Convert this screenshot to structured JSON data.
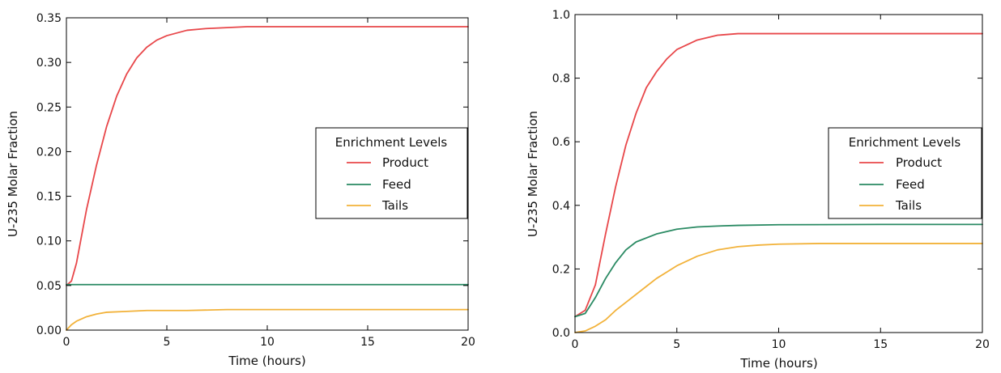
{
  "chart_data": [
    {
      "type": "line",
      "xlabel": "Time (hours)",
      "ylabel": "U-235 Molar Fraction",
      "xlim": [
        0,
        20
      ],
      "ylim": [
        0,
        0.35
      ],
      "x_ticks": [
        0,
        5,
        10,
        15,
        20
      ],
      "x_tick_labels": [
        "0",
        "5",
        "10",
        "15",
        "20"
      ],
      "y_ticks": [
        0,
        0.05,
        0.1,
        0.15,
        0.2,
        0.25,
        0.3,
        0.35
      ],
      "y_tick_labels": [
        "0.00",
        "0.05",
        "0.10",
        "0.15",
        "0.20",
        "0.25",
        "0.30",
        "0.35"
      ],
      "grid": false,
      "legend": {
        "title": "Enrichment Levels",
        "placement": "center-right",
        "entries": [
          "Product",
          "Feed",
          "Tails"
        ]
      },
      "series": [
        {
          "name": "Product",
          "color": "#e8474a",
          "x": [
            0,
            0.25,
            0.5,
            0.75,
            1,
            1.5,
            2,
            2.5,
            3,
            3.5,
            4,
            4.5,
            5,
            6,
            7,
            8,
            9,
            10,
            12,
            15,
            20
          ],
          "values": [
            0.05,
            0.055,
            0.075,
            0.105,
            0.135,
            0.185,
            0.228,
            0.262,
            0.287,
            0.305,
            0.317,
            0.325,
            0.33,
            0.336,
            0.338,
            0.339,
            0.34,
            0.34,
            0.34,
            0.34,
            0.34
          ]
        },
        {
          "name": "Feed",
          "color": "#2a8a63",
          "x": [
            0,
            5,
            10,
            15,
            20
          ],
          "values": [
            0.051,
            0.051,
            0.051,
            0.051,
            0.051
          ]
        },
        {
          "name": "Tails",
          "color": "#f2b23a",
          "x": [
            0,
            0.25,
            0.5,
            1,
            1.5,
            2,
            3,
            4,
            5,
            6,
            8,
            10,
            15,
            20
          ],
          "values": [
            0.0,
            0.006,
            0.01,
            0.015,
            0.018,
            0.02,
            0.021,
            0.022,
            0.022,
            0.022,
            0.023,
            0.023,
            0.023,
            0.023
          ]
        }
      ]
    },
    {
      "type": "line",
      "xlabel": "Time (hours)",
      "ylabel": "U-235 Molar Fraction",
      "xlim": [
        0,
        20
      ],
      "ylim": [
        0,
        1.0
      ],
      "x_ticks": [
        0,
        5,
        10,
        15,
        20
      ],
      "x_tick_labels": [
        "0",
        "5",
        "10",
        "15",
        "20"
      ],
      "y_ticks": [
        0,
        0.2,
        0.4,
        0.6,
        0.8,
        1.0
      ],
      "y_tick_labels": [
        "0.0",
        "0.2",
        "0.4",
        "0.6",
        "0.8",
        "1.0"
      ],
      "grid": false,
      "legend": {
        "title": "Enrichment Levels",
        "placement": "center-right",
        "entries": [
          "Product",
          "Feed",
          "Tails"
        ]
      },
      "series": [
        {
          "name": "Product",
          "color": "#e8474a",
          "x": [
            0,
            0.5,
            1,
            1.5,
            2,
            2.5,
            3,
            3.5,
            4,
            4.5,
            5,
            6,
            7,
            8,
            9,
            10,
            12,
            15,
            20
          ],
          "values": [
            0.05,
            0.07,
            0.15,
            0.31,
            0.46,
            0.59,
            0.69,
            0.77,
            0.82,
            0.86,
            0.89,
            0.92,
            0.935,
            0.94,
            0.94,
            0.94,
            0.94,
            0.94,
            0.94
          ]
        },
        {
          "name": "Feed",
          "color": "#2a8a63",
          "x": [
            0,
            0.5,
            1,
            1.5,
            2,
            2.5,
            3,
            4,
            5,
            6,
            7,
            8,
            10,
            15,
            20
          ],
          "values": [
            0.05,
            0.06,
            0.11,
            0.17,
            0.22,
            0.26,
            0.285,
            0.31,
            0.325,
            0.332,
            0.335,
            0.337,
            0.339,
            0.34,
            0.34
          ]
        },
        {
          "name": "Tails",
          "color": "#f2b23a",
          "x": [
            0,
            0.5,
            1,
            1.5,
            2,
            2.5,
            3,
            3.5,
            4,
            4.5,
            5,
            6,
            7,
            8,
            9,
            10,
            12,
            15,
            20
          ],
          "values": [
            0.0,
            0.005,
            0.02,
            0.04,
            0.07,
            0.095,
            0.12,
            0.145,
            0.17,
            0.19,
            0.21,
            0.24,
            0.26,
            0.27,
            0.275,
            0.278,
            0.28,
            0.28,
            0.28
          ]
        }
      ]
    }
  ]
}
